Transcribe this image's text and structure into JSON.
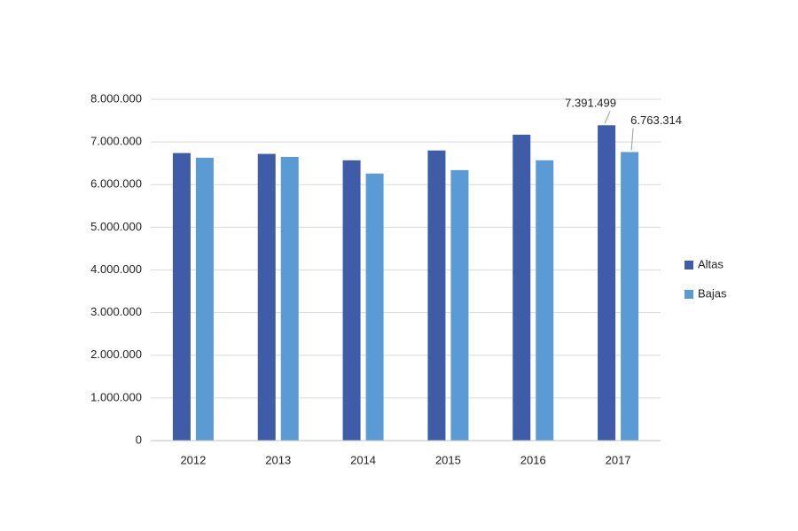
{
  "chart_data": {
    "type": "bar",
    "categories": [
      "2012",
      "2013",
      "2014",
      "2015",
      "2016",
      "2017"
    ],
    "series": [
      {
        "name": "Altas",
        "color": "#3f5ca8",
        "values": [
          6740000,
          6720000,
          6570000,
          6800000,
          7170000,
          7391499
        ],
        "value_labels": [
          null,
          null,
          null,
          null,
          null,
          "7.391.499"
        ]
      },
      {
        "name": "Bajas",
        "color": "#5b9bd5",
        "values": [
          6630000,
          6650000,
          6260000,
          6340000,
          6570000,
          6763314
        ],
        "value_labels": [
          null,
          null,
          null,
          null,
          null,
          "6.763.314"
        ]
      }
    ],
    "ylim": [
      0,
      8000000
    ],
    "yticks": [
      0,
      {
        "value": 1000000,
        "label": "1.000.000"
      },
      {
        "value": 2000000,
        "label": "2.000.000"
      },
      {
        "value": 3000000,
        "label": "3.000.000"
      },
      {
        "value": 4000000,
        "label": "4.000.000"
      },
      {
        "value": 5000000,
        "label": "5.000.000"
      },
      {
        "value": 6000000,
        "label": "6.000.000"
      },
      {
        "value": 7000000,
        "label": "7.000.000"
      },
      {
        "value": 8000000,
        "label": "8.000.000"
      }
    ],
    "grid": true,
    "legend": "right"
  }
}
